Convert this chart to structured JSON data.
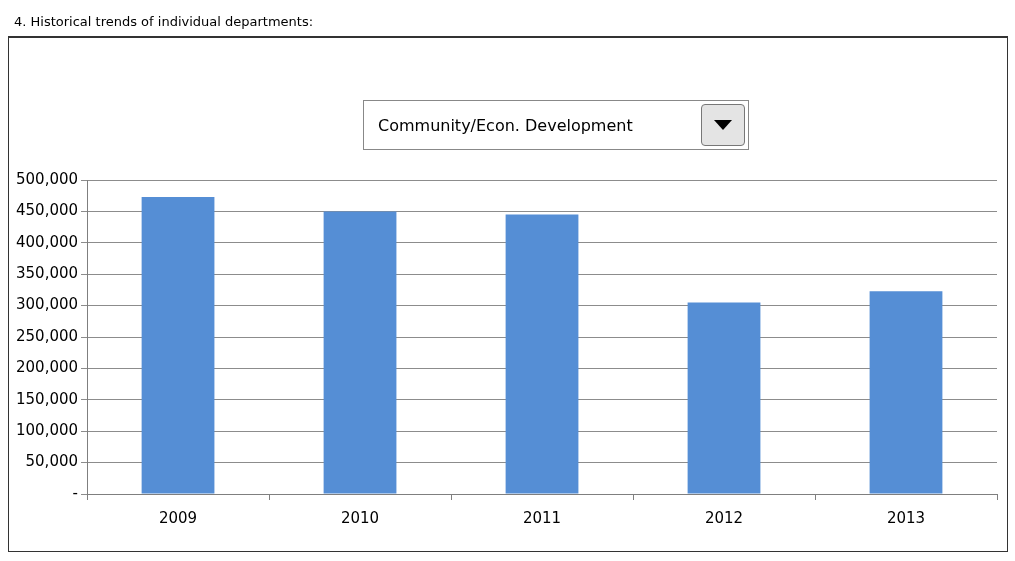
{
  "chart_data": {
    "type": "bar",
    "title": "4. Historical trends of individual departments:",
    "subtitle": "Community/Econ. Development",
    "categories": [
      "2009",
      "2010",
      "2011",
      "2012",
      "2013"
    ],
    "values": [
      473000,
      450000,
      445000,
      305000,
      323000
    ],
    "color": "#558ed5",
    "ylim": [
      0,
      500000
    ],
    "yticks": [
      {
        "value": 0,
        "label": "-"
      },
      {
        "value": 50000,
        "label": "50,000"
      },
      {
        "value": 100000,
        "label": "100,000"
      },
      {
        "value": 150000,
        "label": "150,000"
      },
      {
        "value": 200000,
        "label": "200,000"
      },
      {
        "value": 250000,
        "label": "250,000"
      },
      {
        "value": 300000,
        "label": "300,000"
      },
      {
        "value": 350000,
        "label": "350,000"
      },
      {
        "value": 400000,
        "label": "400,000"
      },
      {
        "value": 450000,
        "label": "450,000"
      },
      {
        "value": 500000,
        "label": "500,000"
      }
    ],
    "grid": "y",
    "legend": false
  }
}
